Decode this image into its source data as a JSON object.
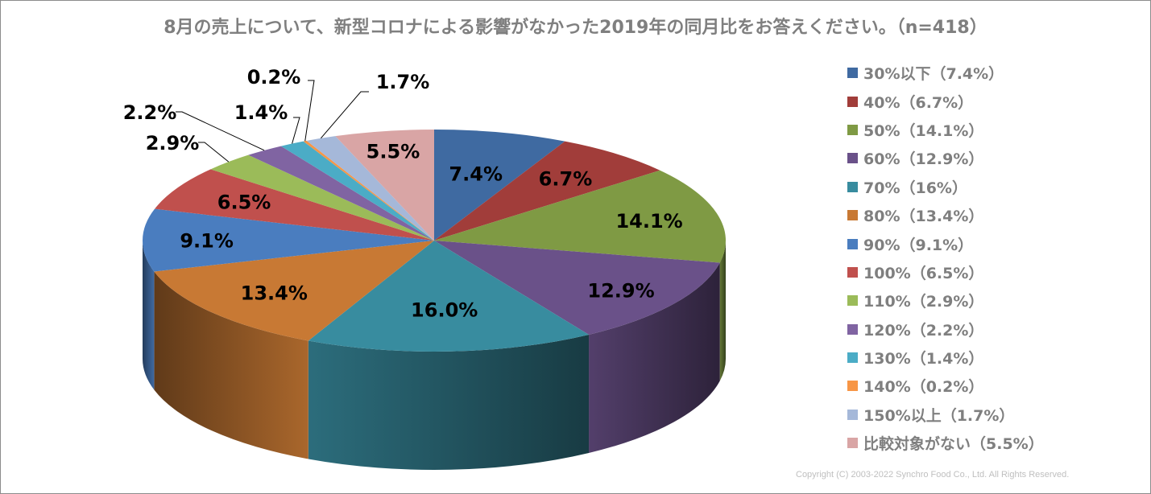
{
  "title": "8月の売上について、新型コロナによる影響がなかった2019年の同月比をお答えください。（n=418）",
  "copyright": "Copyright (C) 2003-2022  Synchro Food Co., Ltd. All Rights Reserved.",
  "chart_data": {
    "type": "pie",
    "style": "3d",
    "title": "8月の売上について、新型コロナによる影響がなかった2019年の同月比をお答えください。（n=418）",
    "n": 418,
    "legend_position": "right",
    "categories": [
      "30%以下",
      "40%",
      "50%",
      "60%",
      "70%",
      "80%",
      "90%",
      "100%",
      "110%",
      "120%",
      "130%",
      "140%",
      "150%以上",
      "比較対象がない"
    ],
    "values": [
      7.4,
      6.7,
      14.1,
      12.9,
      16.0,
      13.4,
      9.1,
      6.5,
      2.9,
      2.2,
      1.4,
      0.2,
      1.7,
      5.5
    ],
    "data_labels": [
      "7.4%",
      "6.7%",
      "14.1%",
      "12.9%",
      "16.0%",
      "13.4%",
      "9.1%",
      "6.5%",
      "2.9%",
      "2.2%",
      "1.4%",
      "0.2%",
      "1.7%",
      "5.5%"
    ],
    "legend_labels": [
      "30%以下（7.4%）",
      "40%（6.7%）",
      "50%（14.1%）",
      "60%（12.9%）",
      "70%（16%）",
      "80%（13.4%）",
      "90%（9.1%）",
      "100%（6.5%）",
      "110%（2.9%）",
      "120%（2.2%）",
      "130%（1.4%）",
      "140%（0.2%）",
      "150%以上（1.7%）",
      "比較対象がない（5.5%）"
    ],
    "colors": [
      "#3f6aa1",
      "#a13d3a",
      "#7f9a44",
      "#6a5189",
      "#388c9f",
      "#c87934",
      "#4a7dbf",
      "#c0504d",
      "#9bbb59",
      "#8064a2",
      "#4bacc6",
      "#f79646",
      "#a5b8d9",
      "#d9a5a5"
    ]
  }
}
